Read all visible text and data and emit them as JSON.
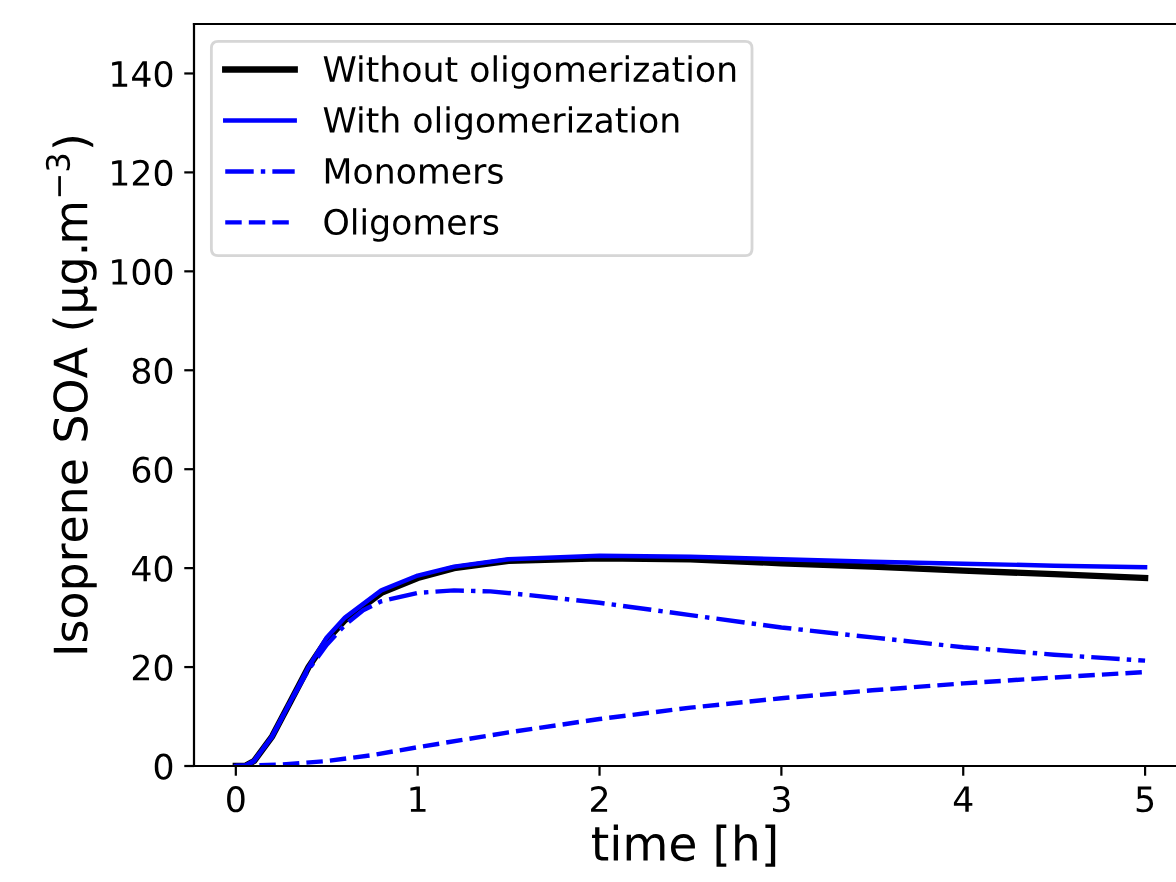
{
  "chart_data": {
    "type": "line",
    "xlabel": "time [h]",
    "ylabel": "Isoprene SOA (μg.m$^{−3}$)",
    "xlim": [
      -0.23,
      5.17
    ],
    "xticks": [
      0,
      1,
      2,
      3,
      4,
      5
    ],
    "ylim": [
      0,
      150
    ],
    "yticks": [
      0,
      20,
      40,
      60,
      80,
      100,
      120,
      140
    ],
    "grid": false,
    "legend": "top left",
    "marker": "none",
    "series": [
      {
        "name": "Without oligomerization",
        "color": "#000000",
        "line_style": "solid",
        "x": [
          0,
          0.05,
          0.1,
          0.2,
          0.3,
          0.4,
          0.5,
          0.6,
          0.8,
          1.0,
          1.2,
          1.5,
          2,
          2.5,
          3,
          3.5,
          4,
          4.5,
          5
        ],
        "values": [
          0,
          0,
          1,
          6,
          13,
          20,
          25.5,
          29.5,
          35,
          38,
          40,
          41.5,
          42,
          41.8,
          41,
          40.3,
          39.5,
          38.8,
          38
        ]
      },
      {
        "name": "With oligomerization",
        "color": "#0000ff",
        "line_style": "solid",
        "x": [
          0,
          0.05,
          0.1,
          0.2,
          0.3,
          0.4,
          0.5,
          0.6,
          0.8,
          1.0,
          1.2,
          1.5,
          2,
          2.5,
          3,
          3.5,
          4,
          4.5,
          5
        ],
        "values": [
          0,
          0,
          1,
          6,
          13,
          20,
          26,
          30,
          35.5,
          38.5,
          40.3,
          41.8,
          42.5,
          42.3,
          41.8,
          41.3,
          40.9,
          40.5,
          40.2
        ]
      },
      {
        "name": "Monomers",
        "color": "#0000ff",
        "line_style": "dashdot",
        "x": [
          0,
          0.05,
          0.1,
          0.2,
          0.3,
          0.4,
          0.5,
          0.6,
          0.7,
          0.8,
          1.0,
          1.2,
          1.4,
          1.6,
          2,
          2.5,
          3,
          3.5,
          4,
          4.5,
          5
        ],
        "values": [
          0,
          0,
          1,
          6,
          13,
          19.5,
          24.5,
          28.5,
          31.5,
          33.3,
          35,
          35.5,
          35.3,
          34.6,
          33,
          30.5,
          28,
          26,
          24,
          22.5,
          21.3
        ]
      },
      {
        "name": "Oligomers",
        "color": "#0000ff",
        "line_style": "dashed",
        "x": [
          0,
          0.25,
          0.5,
          0.75,
          1,
          1.25,
          1.5,
          2,
          2.5,
          3,
          3.5,
          4,
          4.5,
          5
        ],
        "values": [
          0,
          0.3,
          1,
          2.2,
          3.8,
          5.3,
          6.8,
          9.5,
          11.8,
          13.7,
          15.3,
          16.7,
          17.9,
          19
        ]
      }
    ]
  }
}
